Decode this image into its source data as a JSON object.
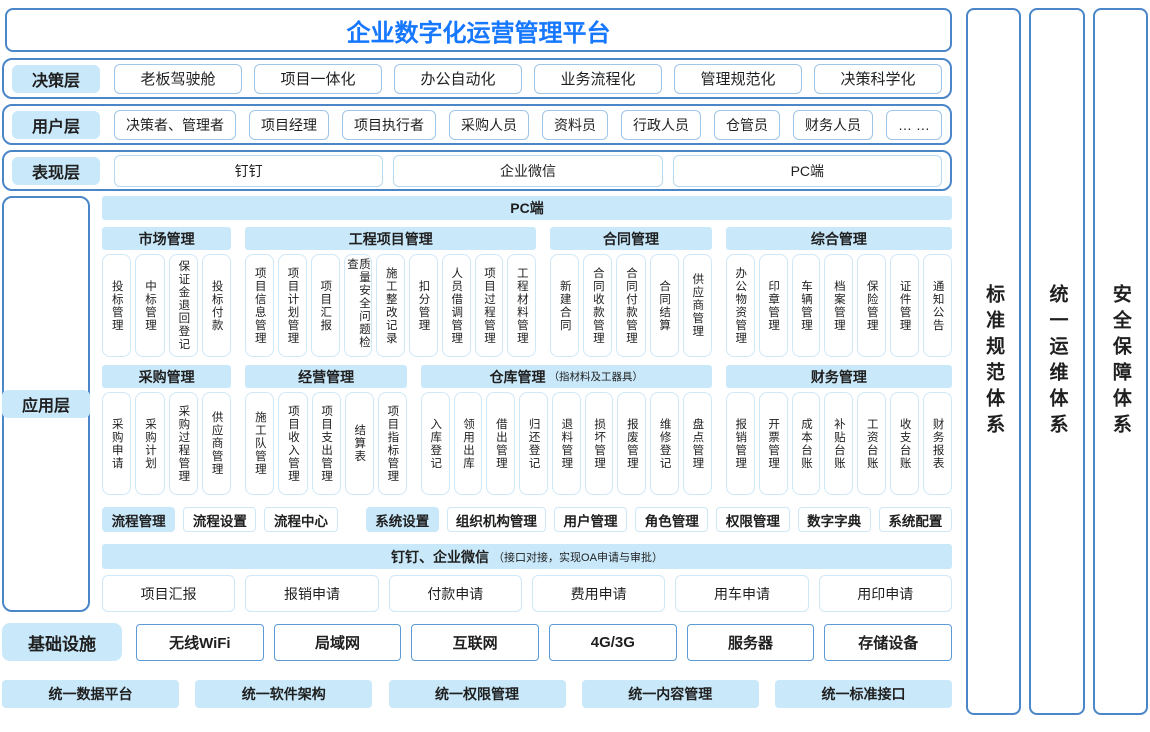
{
  "title": "企业数字化运营管理平台",
  "layers": {
    "decision": {
      "label": "决策层",
      "items": [
        "老板驾驶舱",
        "项目一体化",
        "办公自动化",
        "业务流程化",
        "管理规范化",
        "决策科学化"
      ]
    },
    "user": {
      "label": "用户层",
      "items": [
        "决策者、管理者",
        "项目经理",
        "项目执行者",
        "采购人员",
        "资料员",
        "行政人员",
        "仓管员",
        "财务人员",
        "… …"
      ]
    },
    "presentation": {
      "label": "表现层",
      "items": [
        "钉钉",
        "企业微信",
        "PC端"
      ]
    },
    "application": {
      "label": "应用层",
      "pc_header": "PC端",
      "module_rows": [
        [
          {
            "name": "市场管理",
            "items": [
              "投标管理",
              "中标管理",
              "保证金退回登记",
              "投标付款"
            ]
          },
          {
            "name": "工程项目管理",
            "items": [
              "项目信息管理",
              "项目计划管理",
              "项目汇报",
              "质量安全问题检查",
              "施工整改记录",
              "扣分管理",
              "人员借调管理",
              "项目过程管理",
              "工程材料管理"
            ]
          },
          {
            "name": "合同管理",
            "items": [
              "新建合同",
              "合同收款管理",
              "合同付款管理",
              "合同结算",
              "供应商管理"
            ]
          },
          {
            "name": "综合管理",
            "items": [
              "办公物资管理",
              "印章管理",
              "车辆管理",
              "档案管理",
              "保险管理",
              "证件管理",
              "通知公告"
            ]
          }
        ],
        [
          {
            "name": "采购管理",
            "items": [
              "采购申请",
              "采购计划",
              "采购过程管理",
              "供应商管理"
            ]
          },
          {
            "name": "经营管理",
            "items": [
              "施工队管理",
              "项目收入管理",
              "项目支出管理",
              "结算表",
              "项目指标管理"
            ]
          },
          {
            "name": "仓库管理",
            "note": "（指材料及工器具）",
            "items": [
              "入库登记",
              "领用出库",
              "借出管理",
              "归还登记",
              "退料管理",
              "损坏管理",
              "报废管理",
              "维修登记",
              "盘点管理"
            ]
          },
          {
            "name": "财务管理",
            "items": [
              "报销管理",
              "开票管理",
              "成本台账",
              "补贴台账",
              "工资台账",
              "收支台账",
              "财务报表"
            ]
          }
        ]
      ],
      "chips": [
        {
          "label": "流程管理",
          "highlight": true
        },
        {
          "label": "流程设置",
          "highlight": false
        },
        {
          "label": "流程中心",
          "highlight": false
        },
        {
          "label": "系统设置",
          "highlight": true,
          "gap_before": true
        },
        {
          "label": "组织机构管理",
          "highlight": false
        },
        {
          "label": "用户管理",
          "highlight": false
        },
        {
          "label": "角色管理",
          "highlight": false
        },
        {
          "label": "权限管理",
          "highlight": false
        },
        {
          "label": "数字字典",
          "highlight": false
        },
        {
          "label": "系统配置",
          "highlight": false
        }
      ],
      "dingtalk": {
        "title": "钉钉、企业微信",
        "note": "（接口对接，实现OA申请与审批）",
        "items": [
          "项目汇报",
          "报销申请",
          "付款申请",
          "费用申请",
          "用车申请",
          "用印申请"
        ]
      }
    },
    "infrastructure": {
      "label": "基础设施",
      "items": [
        "无线WiFi",
        "局域网",
        "互联网",
        "4G/3G",
        "服务器",
        "存储设备"
      ]
    }
  },
  "unified_platforms": [
    "统一数据平台",
    "统一软件架构",
    "统一权限管理",
    "统一内容管理",
    "统一标准接口"
  ],
  "side_systems": [
    "标准规范体系",
    "统一运维体系",
    "安全保障体系"
  ],
  "colors": {
    "accent": "#4a86c8",
    "title_text": "#1677ff",
    "fill": "#c9e9fb",
    "item_border": "#cfe8f7",
    "infra_border": "#5b9bd5",
    "text": "#1f1f1f"
  }
}
